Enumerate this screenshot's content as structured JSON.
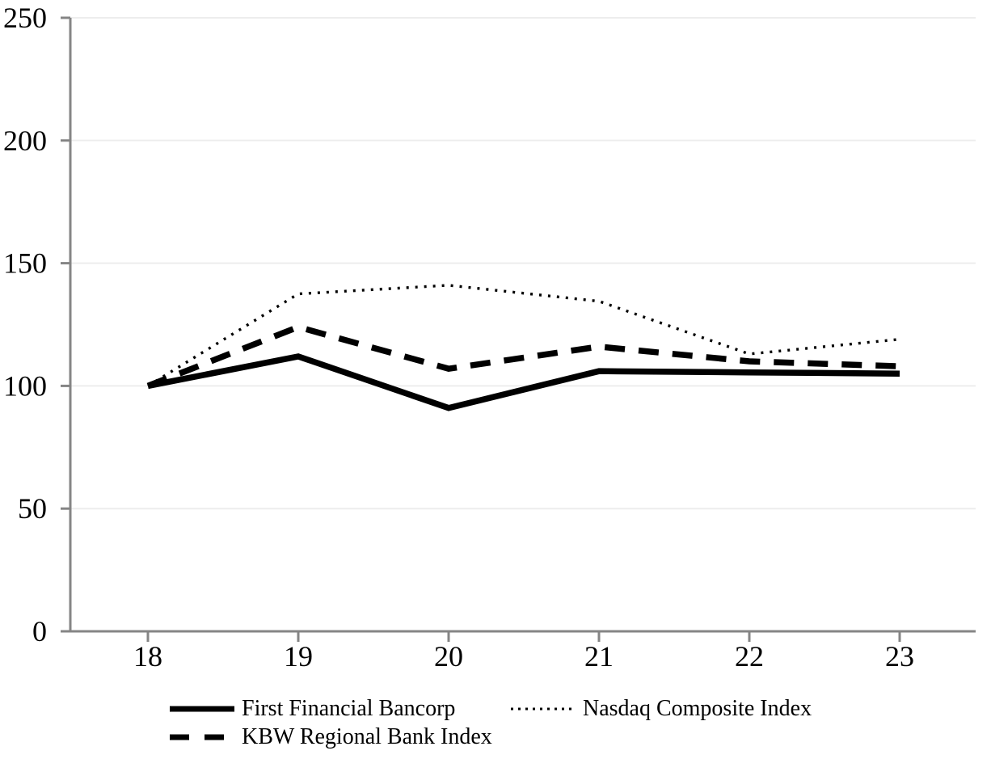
{
  "chart_data": {
    "type": "line",
    "title": "",
    "xlabel": "",
    "ylabel": "",
    "x_tick_labels": [
      "18",
      "19",
      "20",
      "21",
      "22",
      "23"
    ],
    "y_ticks": [
      0,
      50,
      100,
      150,
      200,
      250
    ],
    "ylim": [
      0,
      250
    ],
    "grid": "horizontal",
    "legend_position": "bottom",
    "series": [
      {
        "name": "First Financial Bancorp",
        "style": "solid",
        "values": [
          100,
          112,
          91,
          106,
          105.5,
          105
        ]
      },
      {
        "name": "KBW Regional Bank Index",
        "style": "dashed",
        "values": [
          100,
          124,
          107,
          116,
          110,
          108
        ]
      },
      {
        "name": "Nasdaq Composite Index",
        "style": "dotted",
        "values": [
          100,
          137.5,
          141,
          134.5,
          113,
          119
        ]
      }
    ],
    "colors": {
      "line": "#000000",
      "axis": "#858585",
      "gridline": "#ededed",
      "background": "#ffffff"
    }
  }
}
